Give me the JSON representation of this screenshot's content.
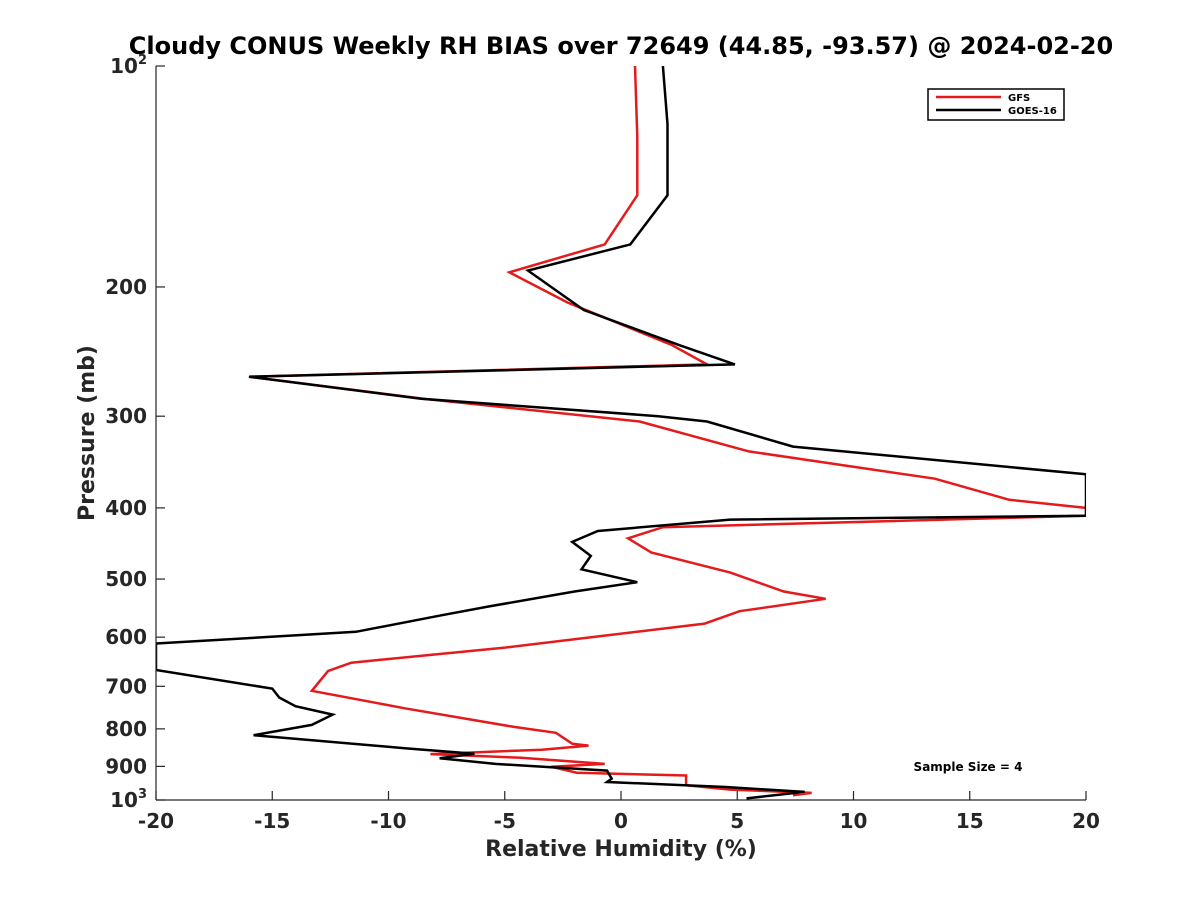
{
  "chart_data": {
    "type": "line",
    "title": "Cloudy CONUS Weekly RH BIAS over 72649 (44.85, -93.57) @ 2024-02-20",
    "xlabel": "Relative Humidity (%)",
    "ylabel": "Pressure (mb)",
    "xlim": [
      -20,
      20
    ],
    "ylim": [
      100,
      1000
    ],
    "y_scale": "log",
    "y_reversed": true,
    "x_ticks": [
      "-20",
      "-15",
      "-10",
      "-5",
      "0",
      "5",
      "10",
      "15",
      "20"
    ],
    "y_ticks": [
      {
        "value": 100,
        "base": "10",
        "exp": "2"
      },
      {
        "value": 200,
        "label": "200"
      },
      {
        "value": 300,
        "label": "300"
      },
      {
        "value": 400,
        "label": "400"
      },
      {
        "value": 500,
        "label": "500"
      },
      {
        "value": 600,
        "label": "600"
      },
      {
        "value": 700,
        "label": "700"
      },
      {
        "value": 800,
        "label": "800"
      },
      {
        "value": 900,
        "label": "900"
      },
      {
        "value": 1000,
        "base": "10",
        "exp": "3"
      }
    ],
    "legend_position": "top-right",
    "annotation": "Sample Size = 4",
    "series": [
      {
        "name": "GFS",
        "color": "#e41a1c",
        "points": [
          [
            0.6,
            100
          ],
          [
            0.7,
            125
          ],
          [
            0.7,
            150
          ],
          [
            -0.7,
            175
          ],
          [
            -4.8,
            191
          ],
          [
            -2.3,
            210
          ],
          [
            2.2,
            240
          ],
          [
            3.7,
            255
          ],
          [
            -16.0,
            265
          ],
          [
            -8.5,
            284
          ],
          [
            0.8,
            305
          ],
          [
            5.5,
            335
          ],
          [
            13.5,
            365
          ],
          [
            16.7,
            390
          ],
          [
            20,
            400
          ],
          [
            20,
            410
          ],
          [
            1.8,
            425
          ],
          [
            0.3,
            440
          ],
          [
            1.3,
            460
          ],
          [
            4.7,
            490
          ],
          [
            7.0,
            520
          ],
          [
            8.8,
            532
          ],
          [
            5.1,
            553
          ],
          [
            3.6,
            575
          ],
          [
            -5.0,
            620
          ],
          [
            -11.6,
            650
          ],
          [
            -12.6,
            667
          ],
          [
            -13.3,
            710
          ],
          [
            -9.3,
            750
          ],
          [
            -4.6,
            795
          ],
          [
            -2.8,
            810
          ],
          [
            -2.1,
            838
          ],
          [
            -1.4,
            843
          ],
          [
            -3.4,
            854
          ],
          [
            -8.2,
            866
          ],
          [
            -4.3,
            876
          ],
          [
            -0.7,
            893
          ],
          [
            -3.0,
            901
          ],
          [
            -1.9,
            918
          ],
          [
            2.8,
            926
          ],
          [
            2.8,
            955
          ],
          [
            4.7,
            968
          ],
          [
            8.2,
            978
          ],
          [
            7.4,
            985
          ]
        ]
      },
      {
        "name": "GOES-16",
        "color": "#000000",
        "points": [
          [
            1.8,
            100
          ],
          [
            2.0,
            120
          ],
          [
            2.0,
            150
          ],
          [
            0.4,
            175
          ],
          [
            -4.0,
            190
          ],
          [
            -1.6,
            215
          ],
          [
            2.5,
            240
          ],
          [
            4.9,
            255
          ],
          [
            -16.0,
            265
          ],
          [
            -8.6,
            284
          ],
          [
            1.6,
            300
          ],
          [
            3.7,
            305
          ],
          [
            7.4,
            330
          ],
          [
            20,
            360
          ],
          [
            20,
            410
          ],
          [
            4.7,
            415
          ],
          [
            -1.0,
            430
          ],
          [
            -2.1,
            445
          ],
          [
            -1.3,
            465
          ],
          [
            -1.7,
            485
          ],
          [
            0.7,
            505
          ],
          [
            -2.0,
            520
          ],
          [
            -5.7,
            545
          ],
          [
            -7.7,
            560
          ],
          [
            -11.4,
            590
          ],
          [
            -20,
            612
          ],
          [
            -20,
            665
          ],
          [
            -15.0,
            705
          ],
          [
            -14.7,
            725
          ],
          [
            -14.0,
            745
          ],
          [
            -12.4,
            765
          ],
          [
            -13.3,
            790
          ],
          [
            -15.8,
            816
          ],
          [
            -9.3,
            850
          ],
          [
            -6.3,
            865
          ],
          [
            -7.8,
            877
          ],
          [
            -5.4,
            893
          ],
          [
            -0.6,
            912
          ],
          [
            -0.4,
            935
          ],
          [
            -0.6,
            945
          ],
          [
            4.5,
            960
          ],
          [
            7.9,
            975
          ],
          [
            5.4,
            995
          ]
        ]
      }
    ]
  }
}
